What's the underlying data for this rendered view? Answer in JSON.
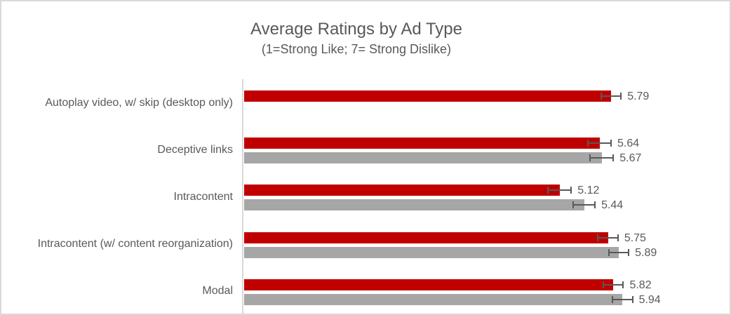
{
  "chart_data": {
    "type": "bar",
    "orientation": "horizontal",
    "title": "Average Ratings by Ad Type",
    "subtitle": "(1=Strong Like; 7= Strong Dislike)",
    "value_axis": {
      "min": 1,
      "max": 7,
      "ticks_visible": false,
      "gridlines": false
    },
    "legend": "none",
    "categories": [
      "Autoplay video, w/ skip (desktop only)",
      "Deceptive links",
      "Intracontent",
      "Intracontent (w/ content reorganization)",
      "Modal"
    ],
    "series": [
      {
        "name": "red-series",
        "color": "#C00000",
        "values": [
          5.79,
          5.64,
          5.12,
          5.75,
          5.82
        ],
        "errors": [
          0.14,
          0.16,
          0.16,
          0.14,
          0.14
        ],
        "labels": [
          "5.79",
          "5.64",
          "5.12",
          "5.75",
          "5.82"
        ]
      },
      {
        "name": "gray-series",
        "color": "#A6A6A6",
        "values": [
          null,
          5.67,
          5.44,
          5.89,
          5.94
        ],
        "errors": [
          null,
          0.16,
          0.15,
          0.14,
          0.14
        ],
        "labels": [
          null,
          "5.67",
          "5.44",
          "5.89",
          "5.94"
        ]
      }
    ],
    "colors": {
      "text": "#595959",
      "error_bar": "#595959",
      "axis_line": "#D9D9D9",
      "frame_border": "#D9D9D9",
      "background": "#FFFFFF"
    }
  }
}
